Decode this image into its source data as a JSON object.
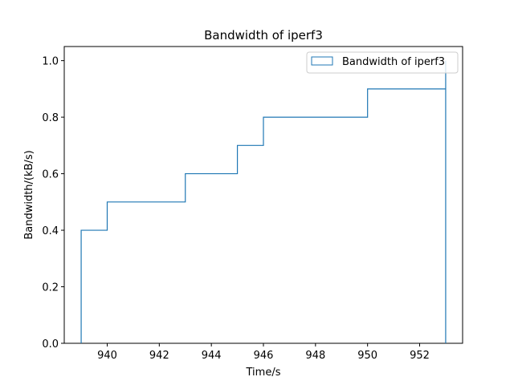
{
  "chart_data": {
    "type": "line",
    "title": "Bandwidth of iperf3",
    "xlabel": "Time/s",
    "ylabel": "Bandwidth/(kB/s)",
    "xlim": [
      938.35,
      953.65
    ],
    "ylim": [
      0,
      1.05
    ],
    "xticks": [
      940,
      942,
      944,
      946,
      948,
      950,
      952
    ],
    "yticks": [
      0.0,
      0.2,
      0.4,
      0.6,
      0.8,
      1.0
    ],
    "ytick_labels": [
      "0.0",
      "0.2",
      "0.4",
      "0.6",
      "0.8",
      "1.0"
    ],
    "legend_position": "top-right",
    "grid": false,
    "series": [
      {
        "name": "Bandwidth of iperf3",
        "color": "#1f77b4",
        "style": "cumulative-step-histogram",
        "bin_edges": [
          939,
          940,
          943,
          945,
          946,
          950,
          953
        ],
        "values": [
          0.4,
          0.5,
          0.6,
          0.7,
          0.8,
          0.9
        ],
        "final_value": 1.0
      }
    ]
  }
}
